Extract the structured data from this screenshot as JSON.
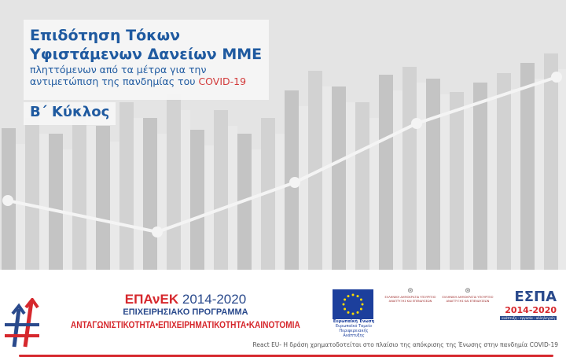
{
  "hero": {
    "title_line1": "Επιδότηση Τόκων",
    "title_line2": "Υφιστάμενων Δανείων ΜΜΕ",
    "subtitle_line1": "πληττόμενων από τα μέτρα για την",
    "subtitle_line2": "αντιμετώπιση της πανδημίας του ",
    "subtitle_highlight": "COVID-19",
    "cycle": "Β΄ Κύκλος"
  },
  "footer": {
    "epanek_brand": "ΕΠΑνΕΚ",
    "epanek_years": "2014-2020",
    "program": "ΕΠΙΧΕΙΡΗΣΙΑΚΟ ΠΡΟΓΡΑΜΜΑ",
    "motto": "ΑΝΤΑΓΩΝΙΣΤΙΚΟΤΗΤΑ•ΕΠΙΧΕΙΡΗΜΑΤΙΚΟΤΗΤΑ•ΚΑΙΝΟΤΟΜΙΑ",
    "eu_label": "Ευρωπαϊκή Ένωση",
    "eu_sub": "Ευρωπαϊκό Ταμείο Περιφερειακής Ανάπτυξης",
    "ministry1": "ΕΛΛΗΝΙΚΗ ΔΗΜΟΚΡΑΤΙΑ ΥΠΟΥΡΓΕΙΟ ΑΝΑΠΤΥΞΗΣ ΚΑΙ ΕΠΕΝΔΥΣΕΩΝ",
    "ministry2": "ΕΛΛΗΝΙΚΗ ΔΗΜΟΚΡΑΤΙΑ ΥΠΟΥΡΓΕΙΟ ΑΝΑΠΤΥΞΗΣ ΚΑΙ ΕΠΕΝΔΥΣΕΩΝ",
    "espa": "ΕΣΠΑ",
    "espa_years": "2014-2020",
    "espa_tag": "ανάπτυξη - εργασία - αλληλεγγύη",
    "caption": "React EU- Η δράση χρηματοδοτείται στο πλαίσιο της απόκρισης της Ένωσης στην πανδημία COVID-19"
  },
  "colors": {
    "blue": "#1f5aa0",
    "red": "#d6282d"
  }
}
